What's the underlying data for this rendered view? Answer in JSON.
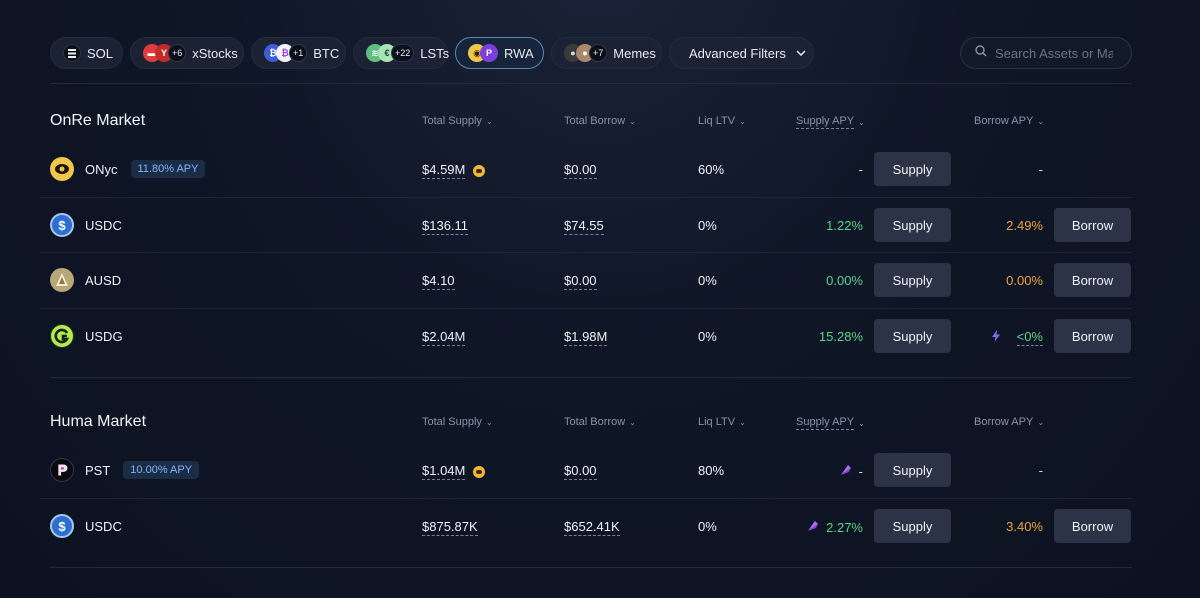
{
  "filters": [
    {
      "label": "SOL",
      "extra": ""
    },
    {
      "label": "xStocks",
      "extra": "+6"
    },
    {
      "label": "BTC",
      "extra": "+1"
    },
    {
      "label": "LSTs",
      "extra": "+22"
    },
    {
      "label": "RWA",
      "extra": ""
    },
    {
      "label": "Memes",
      "extra": "+7"
    },
    {
      "label": "Advanced Filters",
      "extra": ""
    }
  ],
  "search": {
    "placeholder": "Search Assets or Ma..."
  },
  "columns": {
    "total_supply": "Total Supply",
    "total_borrow": "Total Borrow",
    "liq_ltv": "Liq LTV",
    "supply_apy": "Supply APY",
    "borrow_apy": "Borrow APY"
  },
  "actions": {
    "supply": "Supply",
    "borrow": "Borrow"
  },
  "markets": [
    {
      "title": "OnRe Market",
      "rows": [
        {
          "asset": "ONyc",
          "badge": "11.80% APY",
          "total_supply": "$4.59M",
          "total_borrow": "$0.00",
          "liq_ltv": "60%",
          "supply_apy": "-",
          "borrow_apy": "-"
        },
        {
          "asset": "USDC",
          "badge": "",
          "total_supply": "$136.11",
          "total_borrow": "$74.55",
          "liq_ltv": "0%",
          "supply_apy": "1.22%",
          "borrow_apy": "2.49%"
        },
        {
          "asset": "AUSD",
          "badge": "",
          "total_supply": "$4.10",
          "total_borrow": "$0.00",
          "liq_ltv": "0%",
          "supply_apy": "0.00%",
          "borrow_apy": "0.00%"
        },
        {
          "asset": "USDG",
          "badge": "",
          "total_supply": "$2.04M",
          "total_borrow": "$1.98M",
          "liq_ltv": "0%",
          "supply_apy": "15.28%",
          "borrow_apy": "<0%"
        }
      ]
    },
    {
      "title": "Huma Market",
      "rows": [
        {
          "asset": "PST",
          "badge": "10.00% APY",
          "total_supply": "$1.04M",
          "total_borrow": "$0.00",
          "liq_ltv": "80%",
          "supply_apy": "-",
          "borrow_apy": "-"
        },
        {
          "asset": "USDC",
          "badge": "",
          "total_supply": "$875.87K",
          "total_borrow": "$652.41K",
          "liq_ltv": "0%",
          "supply_apy": "2.27%",
          "borrow_apy": "3.40%"
        }
      ]
    }
  ],
  "colors": {
    "accent": "#5d86b5",
    "positive": "#5fd38a",
    "borrow": "#f0a23b",
    "badge": "#7fb6ff"
  },
  "icons": {
    "sol": "solana-icon",
    "search": "search-icon",
    "chevron": "chevron-down-icon",
    "onyc": "onyc-icon",
    "usdc": "usdc-icon",
    "ausd": "ausd-icon",
    "usdg": "usdg-icon",
    "pst": "pst-icon",
    "reward": "reward-coin-icon",
    "points": "points-gem-icon",
    "bolt": "bolt-icon"
  }
}
